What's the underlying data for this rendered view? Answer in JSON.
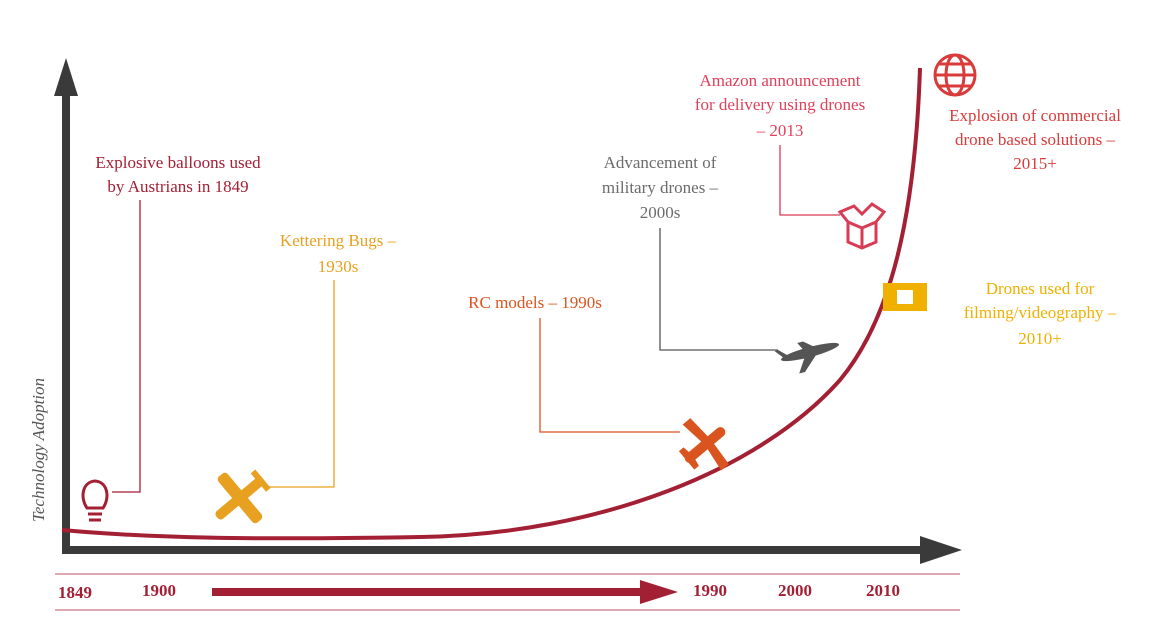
{
  "axis_label": "Technology Adoption",
  "events": [
    {
      "lines": [
        "Explosive balloons used",
        "by Austrians in 1849"
      ]
    },
    {
      "lines": [
        "Kettering Bugs –",
        "1930s"
      ]
    },
    {
      "lines": [
        "RC models – 1990s"
      ]
    },
    {
      "lines": [
        "Advancement of",
        "military drones –",
        "2000s"
      ]
    },
    {
      "lines": [
        "Amazon announcement",
        "for delivery using drones",
        "– 2013"
      ]
    },
    {
      "lines": [
        "Drones used for",
        "filming/videography –",
        "2010+"
      ]
    },
    {
      "lines": [
        "Explosion of commercial",
        "drone based solutions –",
        "2015+"
      ]
    }
  ],
  "timeline": [
    "1849",
    "1900",
    "1990",
    "2000",
    "2010"
  ]
}
